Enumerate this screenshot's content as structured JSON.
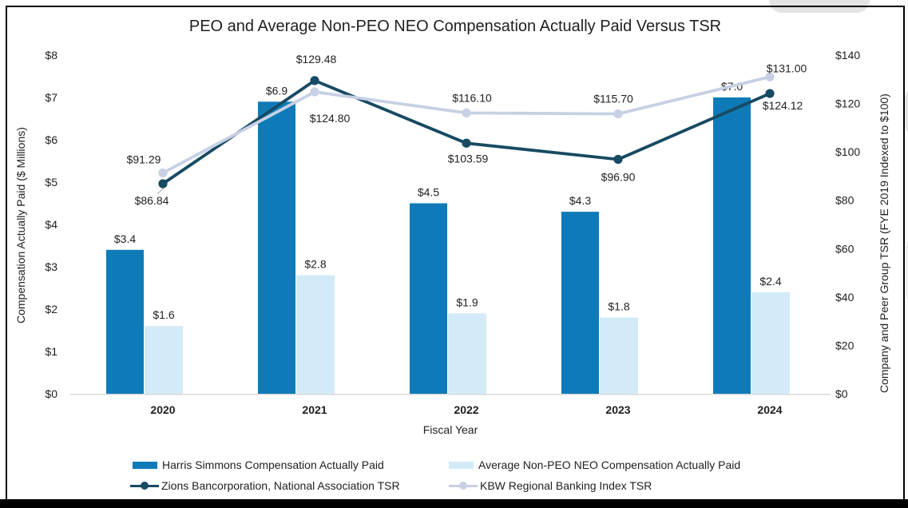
{
  "page": {
    "background_color": "#ffffff",
    "frame_color": "#000000",
    "axis_line_color": "#d9d9d9",
    "text_color": "#1f1f1f",
    "artifact_color": "#e4e4e4"
  },
  "chart_data": {
    "type": "combo-bar-line",
    "title": "PEO and Average Non-PEO NEO Compensation Actually Paid Versus TSR",
    "xlabel": "Fiscal Year",
    "ylabel_left": "Compensation Actually Paid ($ Millions)",
    "ylabel_right": "Company and Peer Group TSR (FYE 2019 Indexed to $100)",
    "categories": [
      "2020",
      "2021",
      "2022",
      "2023",
      "2024"
    ],
    "left_axis": {
      "min": 0,
      "max": 8,
      "step": 1,
      "tick_labels": [
        "$0",
        "$1",
        "$2",
        "$3",
        "$4",
        "$5",
        "$6",
        "$7",
        "$8"
      ]
    },
    "right_axis": {
      "min": 0,
      "max": 140,
      "step": 20,
      "tick_labels": [
        "$0",
        "$20",
        "$40",
        "$60",
        "$80",
        "$100",
        "$120",
        "$140"
      ]
    },
    "grid": false,
    "legend_position": "bottom",
    "series": [
      {
        "name": "Harris Simmons Compensation Actually Paid",
        "type": "bar",
        "axis": "left",
        "color": "#0e7bb8",
        "values": [
          3.4,
          6.9,
          4.5,
          4.3,
          7.0
        ],
        "labels": [
          "$3.4",
          "$6.9",
          "$4.5",
          "$4.3",
          "$7.0"
        ]
      },
      {
        "name": "Average Non-PEO NEO Compensation Actually Paid",
        "type": "bar",
        "axis": "left",
        "color": "#d3ebf8",
        "values": [
          1.6,
          2.8,
          1.9,
          1.8,
          2.4
        ],
        "labels": [
          "$1.6",
          "$2.8",
          "$1.9",
          "$1.8",
          "$2.4"
        ]
      },
      {
        "name": "Zions Bancorporation, National Association TSR",
        "type": "line",
        "axis": "right",
        "color": "#174a63",
        "values": [
          86.84,
          129.48,
          103.59,
          96.9,
          124.12
        ],
        "labels": [
          "$86.84",
          "$129.48",
          "$103.59",
          "$96.90",
          "$124.12"
        ]
      },
      {
        "name": "KBW Regional Banking Index TSR",
        "type": "line",
        "axis": "right",
        "color": "#c7d0e4",
        "values": [
          91.29,
          124.8,
          116.1,
          115.7,
          131.0
        ],
        "labels": [
          "$91.29",
          "$124.80",
          "$116.10",
          "$115.70",
          "$131.00"
        ]
      }
    ]
  }
}
